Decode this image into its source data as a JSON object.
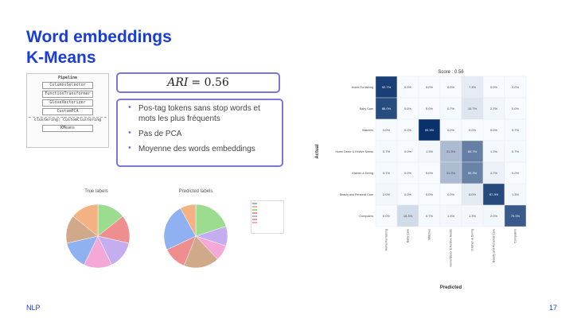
{
  "slide": {
    "title_line1": "Word embeddings",
    "title_line2": "K-Means",
    "ari_label": "ARI",
    "ari_eq": "= 0.56",
    "bullets": [
      "Pos-tag tokens sans stop words et mots les plus fréquents",
      "Pas de PCA",
      "Moyenne des words embeddings"
    ],
    "footer_left": "NLP",
    "page_number": "17"
  },
  "pipeline": {
    "header": "Pipeline",
    "steps": [
      "ColumnsSelector",
      "FunctionTransformer",
      "GloveVectorizer",
      "CustomPCA"
    ],
    "clustering_label": "clustering: CustomClustering",
    "final_step": "KMeans"
  },
  "pies": {
    "true_title": "True labels",
    "pred_title": "Predicted labels",
    "legend_colors": [
      "#8fb1f2",
      "#f4b183",
      "#9bdc8f",
      "#ef8e8e",
      "#c5aef0",
      "#cfa98a",
      "#f3a8d8"
    ]
  },
  "chart_data": [
    {
      "type": "pie",
      "title": "True labels",
      "values": [
        14.3,
        14.3,
        14.3,
        14.3,
        14.3,
        14.3,
        14.3
      ],
      "colors": [
        "#9bdc8f",
        "#ef8e8e",
        "#c5aef0",
        "#f3a8d8",
        "#8fb1f2",
        "#cfa98a",
        "#f4b183"
      ]
    },
    {
      "type": "pie",
      "title": "Predicted labels",
      "values": [
        20,
        10,
        8,
        18,
        12,
        24,
        8
      ],
      "colors": [
        "#9bdc8f",
        "#c5aef0",
        "#f3a8d8",
        "#cfa98a",
        "#ef8e8e",
        "#8fb1f2",
        "#f4b183"
      ]
    },
    {
      "type": "heatmap",
      "title": "Score : 0.56",
      "xlabel": "Predicted",
      "ylabel": "Actual",
      "categories": [
        "Home Furnishing",
        "Baby Care",
        "Watches",
        "Home Decor & Festive Needs",
        "Kitchen & Dining",
        "Beauty and Personal Care",
        "Computers"
      ],
      "values": [
        [
          92.7,
          0.0,
          0.0,
          0.0,
          7.3,
          0.0,
          0.0
        ],
        [
          86.0,
          0.0,
          0.0,
          0.7,
          10.7,
          2.7,
          0.0
        ],
        [
          0.0,
          0.0,
          99.3,
          0.0,
          0.0,
          0.0,
          0.7
        ],
        [
          0.7,
          0.0,
          1.3,
          31.3,
          60.7,
          1.3,
          0.7
        ],
        [
          0.7,
          0.0,
          0.0,
          31.3,
          59.3,
          4.7,
          0.0
        ],
        [
          2.0,
          0.0,
          0.0,
          0.0,
          8.0,
          87.3,
          1.3
        ],
        [
          0.0,
          15.3,
          0.7,
          1.3,
          1.3,
          2.0,
          79.3
        ]
      ]
    }
  ]
}
